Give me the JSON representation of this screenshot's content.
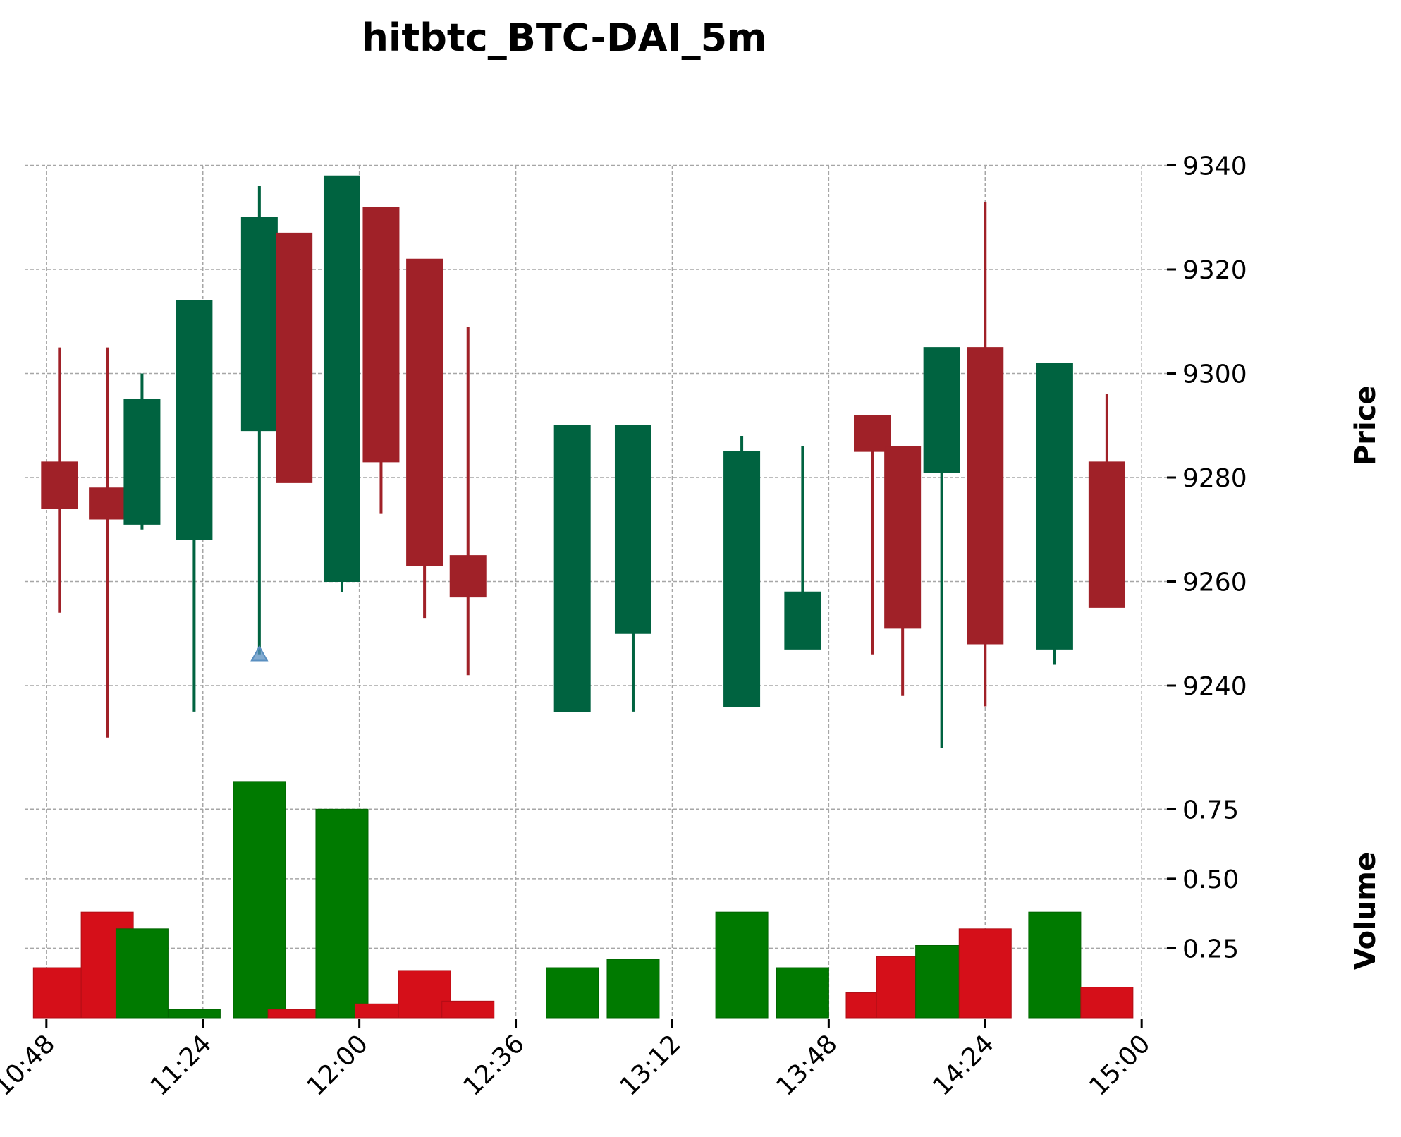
{
  "chart_data": {
    "type": "candlestick",
    "title": "hitbtc_BTC-DAI_5m",
    "price_axis": {
      "label": "Price",
      "ticks": [
        9240,
        9260,
        9280,
        9300,
        9320,
        9340
      ],
      "ylim": [
        9224,
        9344
      ]
    },
    "volume_axis": {
      "label": "Volume",
      "ticks": [
        "0.25",
        "0.50",
        "0.75"
      ],
      "tick_values": [
        0.25,
        0.5,
        0.75
      ],
      "ylim": [
        0,
        0.87
      ]
    },
    "x_axis": {
      "ticks": [
        "10:48",
        "11:24",
        "12:00",
        "12:36",
        "13:12",
        "13:48",
        "14:24",
        "15:00"
      ],
      "tick_minutes": [
        648,
        684,
        720,
        756,
        792,
        828,
        864,
        900
      ],
      "range_minutes": [
        643,
        905
      ]
    },
    "grid": true,
    "colors": {
      "up_candle": "#006340",
      "down_candle": "#a02128",
      "up_volume": "#007a00",
      "down_volume": "#d50f19",
      "grid": "#a6a6a6",
      "marker": "#5a8fc0"
    },
    "candles": [
      {
        "time": "10:51",
        "open": 9283,
        "high": 9305,
        "low": 9254,
        "close": 9274,
        "volume": 0.18
      },
      {
        "time": "11:02",
        "open": 9278,
        "high": 9305,
        "low": 9230,
        "close": 9272,
        "volume": 0.38
      },
      {
        "time": "11:10",
        "open": 9271,
        "high": 9300,
        "low": 9270,
        "close": 9295,
        "volume": 0.32
      },
      {
        "time": "11:22",
        "open": 9268,
        "high": 9314,
        "low": 9235,
        "close": 9314,
        "volume": 0.03
      },
      {
        "time": "11:37",
        "open": 9289,
        "high": 9336,
        "low": 9246,
        "close": 9330,
        "volume": 0.85
      },
      {
        "time": "11:45",
        "open": 9327,
        "high": 9327,
        "low": 9279,
        "close": 9279,
        "volume": 0.03
      },
      {
        "time": "11:56",
        "open": 9260,
        "high": 9338,
        "low": 9258,
        "close": 9338,
        "volume": 0.75
      },
      {
        "time": "12:05",
        "open": 9332,
        "high": 9332,
        "low": 9273,
        "close": 9283,
        "volume": 0.05
      },
      {
        "time": "12:15",
        "open": 9322,
        "high": 9322,
        "low": 9253,
        "close": 9263,
        "volume": 0.17
      },
      {
        "time": "12:25",
        "open": 9265,
        "high": 9309,
        "low": 9242,
        "close": 9257,
        "volume": 0.06
      },
      {
        "time": "12:49",
        "open": 9235,
        "high": 9290,
        "low": 9235,
        "close": 9290,
        "volume": 0.18
      },
      {
        "time": "13:03",
        "open": 9250,
        "high": 9290,
        "low": 9235,
        "close": 9290,
        "volume": 0.21
      },
      {
        "time": "13:28",
        "open": 9236,
        "high": 9288,
        "low": 9236,
        "close": 9285,
        "volume": 0.38
      },
      {
        "time": "13:42",
        "open": 9247,
        "high": 9286,
        "low": 9247,
        "close": 9258,
        "volume": 0.18
      },
      {
        "time": "13:58",
        "open": 9292,
        "high": 9292,
        "low": 9246,
        "close": 9285,
        "volume": 0.09
      },
      {
        "time": "14:05",
        "open": 9286,
        "high": 9286,
        "low": 9238,
        "close": 9251,
        "volume": 0.22
      },
      {
        "time": "14:14",
        "open": 9281,
        "high": 9305,
        "low": 9228,
        "close": 9305,
        "volume": 0.26
      },
      {
        "time": "14:24",
        "open": 9305,
        "high": 9333,
        "low": 9236,
        "close": 9248,
        "volume": 0.32
      },
      {
        "time": "14:40",
        "open": 9247,
        "high": 9302,
        "low": 9244,
        "close": 9302,
        "volume": 0.38
      },
      {
        "time": "14:52",
        "open": 9283,
        "high": 9296,
        "low": 9255,
        "close": 9255,
        "volume": 0.11
      }
    ],
    "markers": [
      {
        "time": "11:37",
        "price": 9246,
        "shape": "triangle-up"
      }
    ]
  }
}
